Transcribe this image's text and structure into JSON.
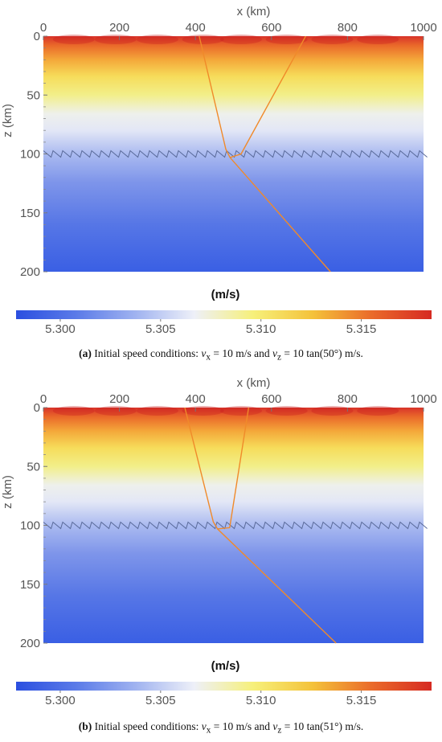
{
  "figures": [
    {
      "tag": "(a)",
      "caption_text": "Initial speed conditions: ",
      "caption_math": "v_x = 10 m/s and v_z = 10 tan(50°) m/s.",
      "vx": "10",
      "vz_angle_deg": "50",
      "chart_data": {
        "type": "heatmap",
        "xlabel": "x (km)",
        "ylabel": "z (km)",
        "xlim": [
          0,
          1000
        ],
        "ylim": [
          200,
          0
        ],
        "x_ticks": [
          "0",
          "200",
          "400",
          "600",
          "800",
          "1000"
        ],
        "y_ticks": [
          "0",
          "50",
          "100",
          "150",
          "200"
        ],
        "interface_depth_km": 100,
        "colorbar": {
          "label": "(m/s)",
          "range": [
            5.2978,
            5.3185
          ],
          "ticks": [
            "5.300",
            "5.305",
            "5.310",
            "5.315"
          ],
          "colors": [
            "#2b4fe0",
            "#5a7ae8",
            "#9fb2f0",
            "#eef0f8",
            "#f6f07a",
            "#f4c23a",
            "#ea6a2a",
            "#d62a22"
          ]
        },
        "rays": [
          {
            "name": "",
            "color": "#f08a2a",
            "x": [
              410,
              480,
              491,
              755
            ],
            "z": [
              0,
              96,
              103,
              200
            ]
          },
          {
            "name": "",
            "color": "#f08a2a",
            "x": [
              491,
              520,
              690
            ],
            "z": [
              103,
              100,
              0
            ]
          }
        ]
      }
    },
    {
      "tag": "(b)",
      "caption_text": "Initial speed conditions: ",
      "caption_math": "v_x = 10 m/s and v_z = 10 tan(51°) m/s.",
      "vx": "10",
      "vz_angle_deg": "51",
      "chart_data": {
        "type": "heatmap",
        "xlabel": "x (km)",
        "ylabel": "z (km)",
        "xlim": [
          0,
          1000
        ],
        "ylim": [
          200,
          0
        ],
        "x_ticks": [
          "0",
          "200",
          "400",
          "600",
          "800",
          "1000"
        ],
        "y_ticks": [
          "0",
          "50",
          "100",
          "150",
          "200"
        ],
        "interface_depth_km": 100,
        "colorbar": {
          "label": "(m/s)",
          "range": [
            5.2978,
            5.3185
          ],
          "ticks": [
            "5.300",
            "5.305",
            "5.310",
            "5.315"
          ],
          "colors": [
            "#2b4fe0",
            "#5a7ae8",
            "#9fb2f0",
            "#eef0f8",
            "#f6f07a",
            "#f4c23a",
            "#ea6a2a",
            "#d62a22"
          ]
        },
        "rays": [
          {
            "name": "",
            "color": "#f08a2a",
            "x": [
              372,
              447,
              458,
              770
            ],
            "z": [
              0,
              97,
              103,
              200
            ]
          },
          {
            "name": "",
            "color": "#f08a2a",
            "x": [
              458,
              490,
              540
            ],
            "z": [
              103,
              102,
              0
            ]
          }
        ]
      }
    }
  ]
}
